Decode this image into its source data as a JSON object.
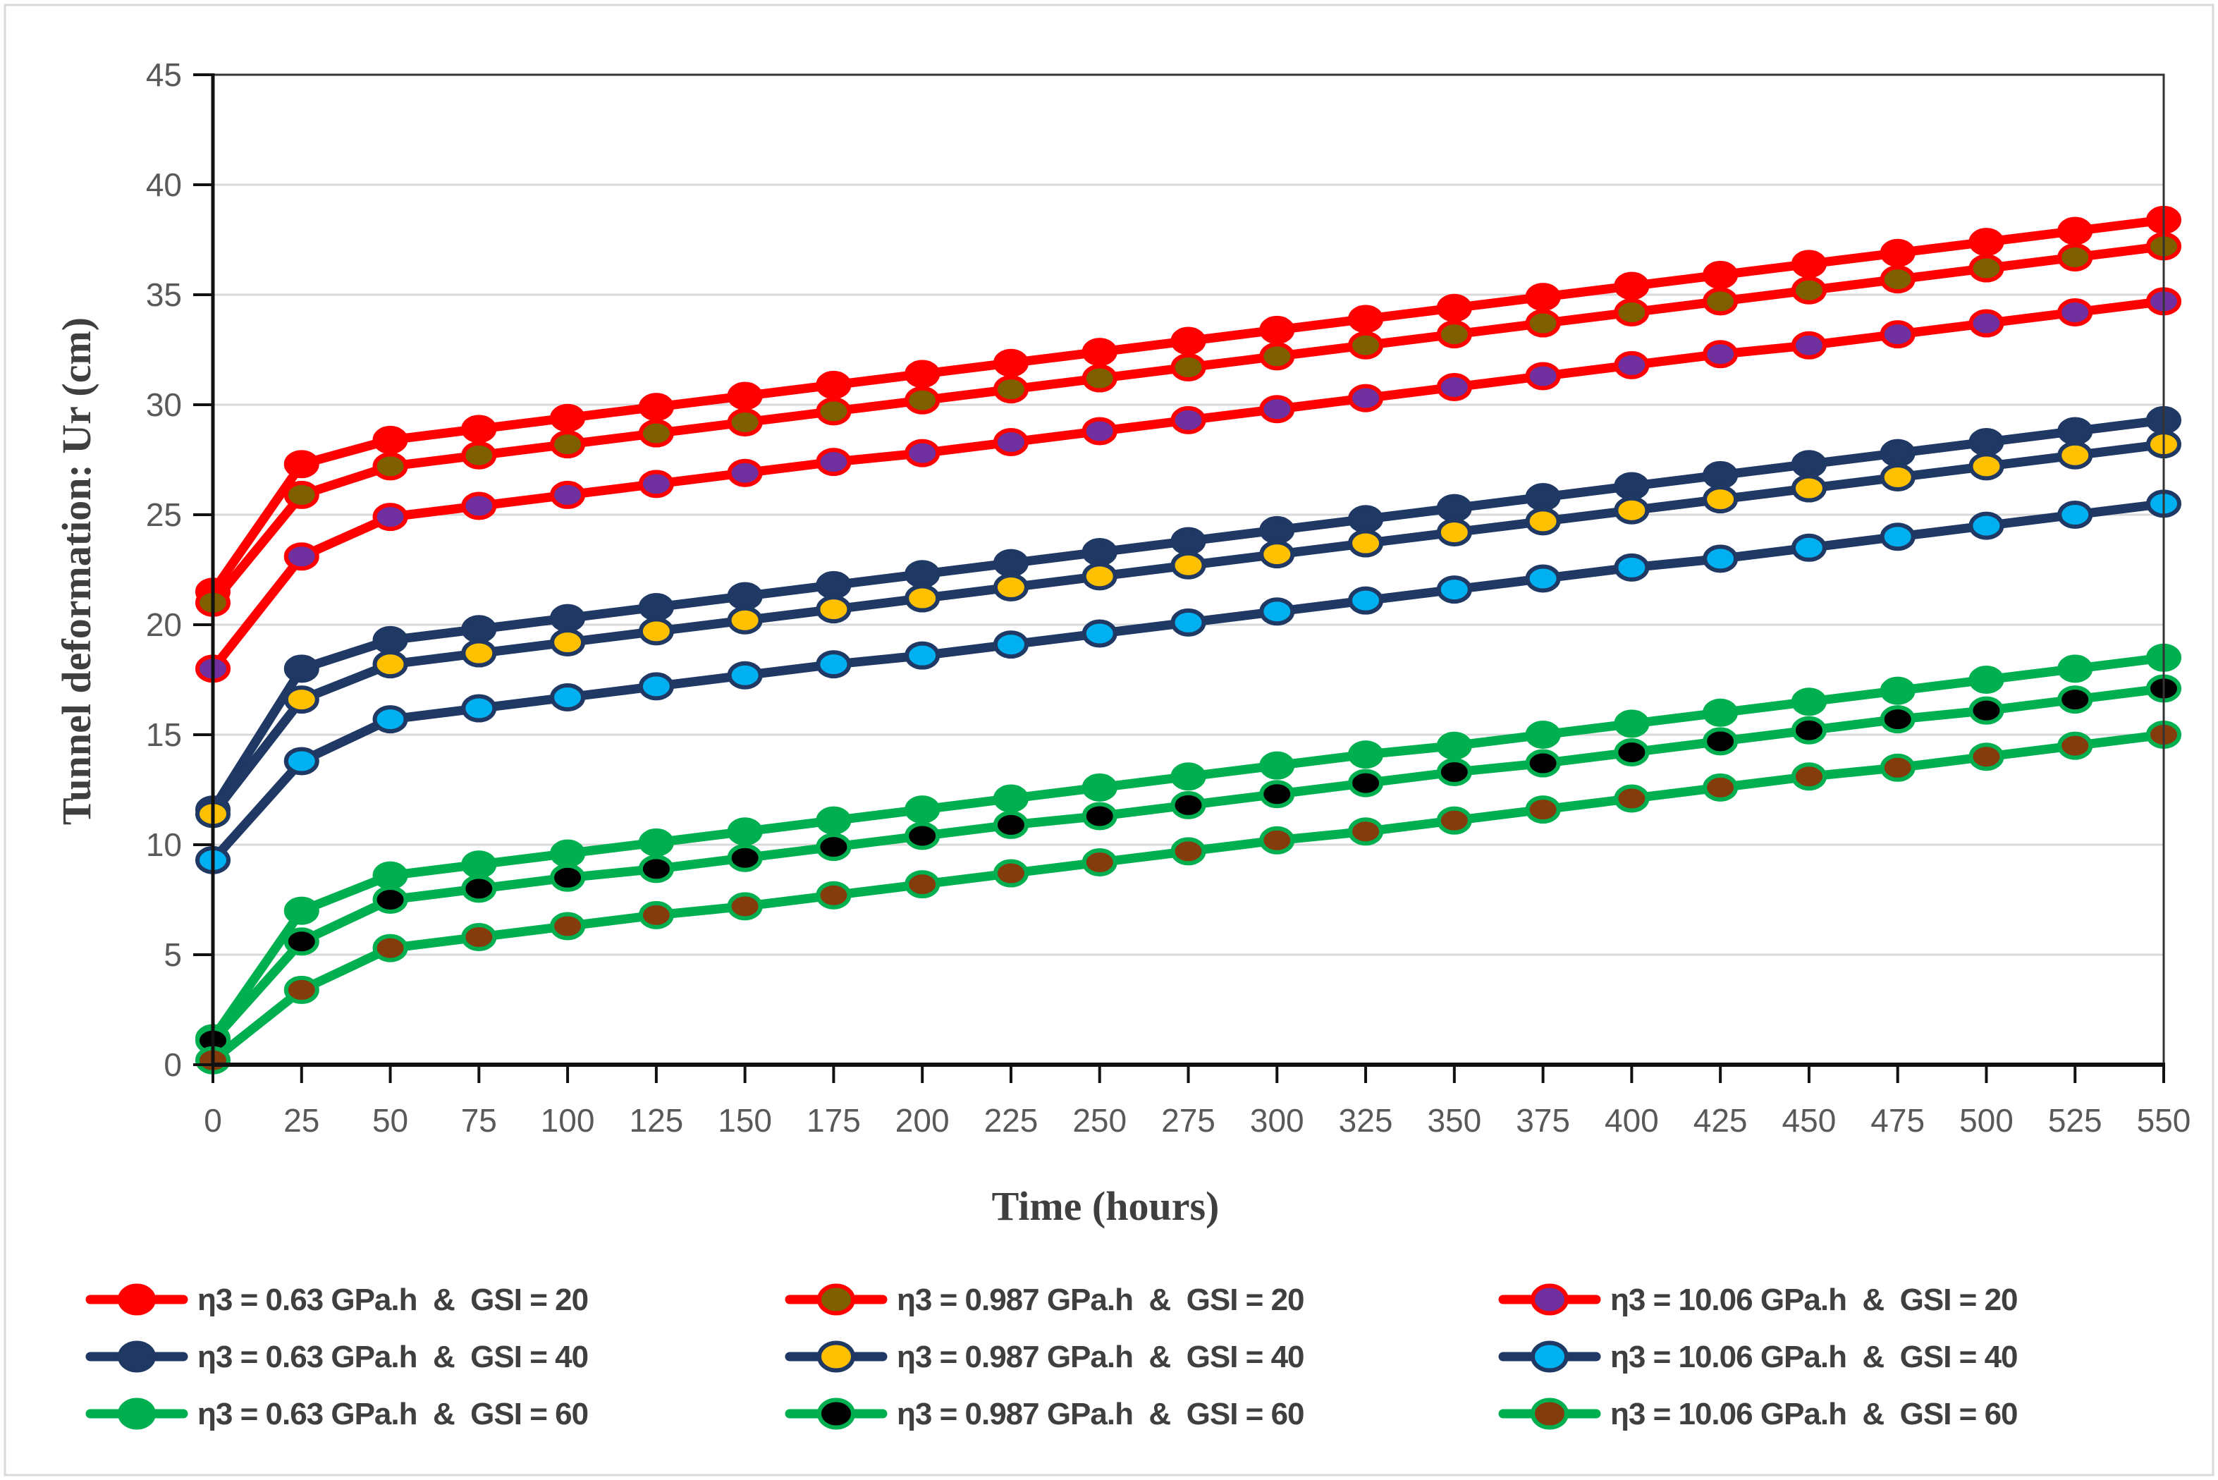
{
  "page": {
    "background": "#FFFFFF",
    "outer_border_color": "#D9D9D9"
  },
  "chart_data": {
    "type": "line",
    "title": "",
    "xlabel": "Time (hours)",
    "ylabel": "Tunnel deformation: Ur (cm)",
    "xlim": [
      0,
      550
    ],
    "ylim": [
      0,
      45
    ],
    "xtick_step": 25,
    "ytick_step": 5,
    "grid": "horizontal-major",
    "legend_position": "bottom",
    "styles": {
      "gridline_color": "#D9D9D9",
      "plot_border_color": "#333333",
      "axis_line_color": "#111111",
      "tick_label_color": "#595959",
      "axis_title_color": "#3F3F3F",
      "legend_text_color": "#3F3F3F"
    },
    "x": [
      0,
      25,
      50,
      75,
      100,
      125,
      150,
      175,
      200,
      225,
      250,
      275,
      300,
      325,
      350,
      375,
      400,
      425,
      450,
      475,
      500,
      525,
      550
    ],
    "xtick_labels": [
      "0",
      "25",
      "50",
      "75",
      "100",
      "125",
      "150",
      "175",
      "200",
      "225",
      "250",
      "275",
      "300",
      "325",
      "350",
      "375",
      "400",
      "425",
      "450",
      "475",
      "500",
      "525",
      "550"
    ],
    "ytick_labels": [
      "0",
      "5",
      "10",
      "15",
      "20",
      "25",
      "30",
      "35",
      "40",
      "45"
    ],
    "series": [
      {
        "name": "η3 = 0.63 GPa.h  &  GSI = 20",
        "eta3_gpa_h": 0.63,
        "gsi": 20,
        "line_color": "#FF0000",
        "marker_fill": "#FF0000",
        "values": [
          21.5,
          27.3,
          28.4,
          28.9,
          29.4,
          29.9,
          30.4,
          30.9,
          31.4,
          31.9,
          32.4,
          32.9,
          33.4,
          33.9,
          34.4,
          34.9,
          35.4,
          35.9,
          36.4,
          36.9,
          37.4,
          37.9,
          38.4
        ]
      },
      {
        "name": "η3 = 0.987 GPa.h  &  GSI = 20",
        "eta3_gpa_h": 0.987,
        "gsi": 20,
        "line_color": "#FF0000",
        "marker_fill": "#7F6000",
        "values": [
          21.0,
          25.9,
          27.2,
          27.7,
          28.2,
          28.7,
          29.2,
          29.7,
          30.2,
          30.7,
          31.2,
          31.7,
          32.2,
          32.7,
          33.2,
          33.7,
          34.2,
          34.7,
          35.2,
          35.7,
          36.2,
          36.7,
          37.2
        ]
      },
      {
        "name": "η3 = 10.06 GPa.h  &  GSI = 20",
        "eta3_gpa_h": 10.06,
        "gsi": 20,
        "line_color": "#FF0000",
        "marker_fill": "#7030A0",
        "values": [
          18.0,
          23.1,
          24.9,
          25.4,
          25.9,
          26.4,
          26.9,
          27.4,
          27.8,
          28.3,
          28.8,
          29.3,
          29.8,
          30.3,
          30.8,
          31.3,
          31.8,
          32.3,
          32.7,
          33.2,
          33.7,
          34.2,
          34.7
        ]
      },
      {
        "name": "η3 = 0.63 GPa.h  &  GSI = 40",
        "eta3_gpa_h": 0.63,
        "gsi": 40,
        "line_color": "#1F3864",
        "marker_fill": "#1F3864",
        "values": [
          11.6,
          18.0,
          19.3,
          19.8,
          20.3,
          20.8,
          21.3,
          21.8,
          22.3,
          22.8,
          23.3,
          23.8,
          24.3,
          24.8,
          25.3,
          25.8,
          26.3,
          26.8,
          27.3,
          27.8,
          28.3,
          28.8,
          29.3
        ]
      },
      {
        "name": "η3 = 0.987 GPa.h  &  GSI = 40",
        "eta3_gpa_h": 0.987,
        "gsi": 40,
        "line_color": "#1F3864",
        "marker_fill": "#FFC000",
        "values": [
          11.4,
          16.6,
          18.2,
          18.7,
          19.2,
          19.7,
          20.2,
          20.7,
          21.2,
          21.7,
          22.2,
          22.7,
          23.2,
          23.7,
          24.2,
          24.7,
          25.2,
          25.7,
          26.2,
          26.7,
          27.2,
          27.7,
          28.2
        ]
      },
      {
        "name": "η3 = 10.06 GPa.h  &  GSI = 40",
        "eta3_gpa_h": 10.06,
        "gsi": 40,
        "line_color": "#1F3864",
        "marker_fill": "#00B0F0",
        "values": [
          9.3,
          13.8,
          15.7,
          16.2,
          16.7,
          17.2,
          17.7,
          18.2,
          18.6,
          19.1,
          19.6,
          20.1,
          20.6,
          21.1,
          21.6,
          22.1,
          22.6,
          23.0,
          23.5,
          24.0,
          24.5,
          25.0,
          25.5
        ]
      },
      {
        "name": "η3 = 0.63 GPa.h  &  GSI = 60",
        "eta3_gpa_h": 0.63,
        "gsi": 60,
        "line_color": "#00B050",
        "marker_fill": "#00B050",
        "values": [
          1.2,
          7.0,
          8.6,
          9.1,
          9.6,
          10.1,
          10.6,
          11.1,
          11.6,
          12.1,
          12.6,
          13.1,
          13.6,
          14.1,
          14.5,
          15.0,
          15.5,
          16.0,
          16.5,
          17.0,
          17.5,
          18.0,
          18.5
        ]
      },
      {
        "name": "η3 = 0.987 GPa.h  &  GSI = 60",
        "eta3_gpa_h": 0.987,
        "gsi": 60,
        "line_color": "#00B050",
        "marker_fill": "#000000",
        "values": [
          1.1,
          5.6,
          7.5,
          8.0,
          8.5,
          8.9,
          9.4,
          9.9,
          10.4,
          10.9,
          11.3,
          11.8,
          12.3,
          12.8,
          13.3,
          13.7,
          14.2,
          14.7,
          15.2,
          15.7,
          16.1,
          16.6,
          17.1
        ]
      },
      {
        "name": "η3 = 10.06 GPa.h  &  GSI = 60",
        "eta3_gpa_h": 10.06,
        "gsi": 60,
        "line_color": "#00B050",
        "marker_fill": "#843C0C",
        "values": [
          0.2,
          3.4,
          5.3,
          5.8,
          6.3,
          6.8,
          7.2,
          7.7,
          8.2,
          8.7,
          9.2,
          9.7,
          10.2,
          10.6,
          11.1,
          11.6,
          12.1,
          12.6,
          13.1,
          13.5,
          14.0,
          14.5,
          15.0
        ]
      }
    ]
  }
}
